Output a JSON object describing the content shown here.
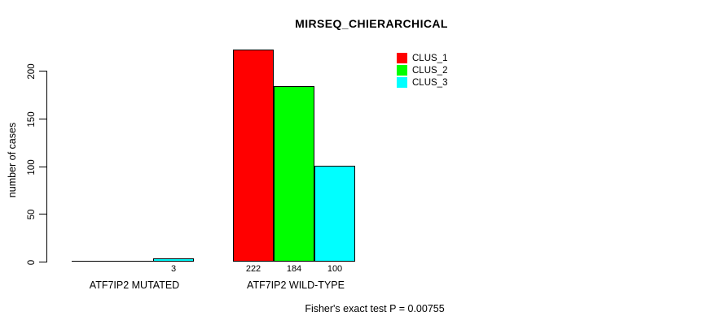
{
  "title": "MIRSEQ_CHIERARCHICAL",
  "footer": "Fisher's exact test P = 0.00755",
  "chart_data": {
    "type": "bar",
    "title": "MIRSEQ_CHIERARCHICAL",
    "categories": [
      "ATF7IP2 MUTATED",
      "ATF7IP2 WILD-TYPE"
    ],
    "series": [
      {
        "name": "CLUS_1",
        "color": "#FF0000",
        "values": [
          0,
          222
        ]
      },
      {
        "name": "CLUS_2",
        "color": "#00FF00",
        "values": [
          0,
          184
        ]
      },
      {
        "name": "CLUS_3",
        "color": "#00FFFF",
        "values": [
          3,
          100
        ]
      }
    ],
    "bar_value_labels": [
      [
        "",
        "",
        "3"
      ],
      [
        "222",
        "184",
        "100"
      ]
    ],
    "xlabel": "",
    "ylabel": "number of cases",
    "yticks": [
      0,
      50,
      100,
      150,
      200
    ],
    "ylim": [
      0,
      222
    ],
    "grid": false,
    "legend_position": "top-right",
    "annotation": "Fisher's exact test P = 0.00755"
  }
}
